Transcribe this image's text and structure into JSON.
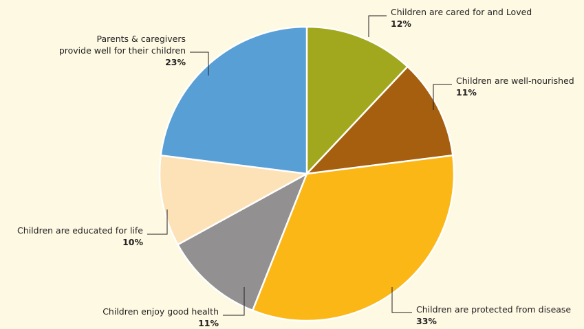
{
  "chart_data": {
    "type": "pie",
    "slices": [
      {
        "label": [
          "Children are cared for and Loved"
        ],
        "value": 12,
        "display": "12%",
        "color": "#a2a81d"
      },
      {
        "label": [
          "Children are well-nourished"
        ],
        "value": 11,
        "display": "11%",
        "color": "#a65f0e"
      },
      {
        "label": [
          "Children are protected from disease"
        ],
        "value": 33,
        "display": "33%",
        "color": "#fbb716"
      },
      {
        "label": [
          "Children enjoy good health"
        ],
        "value": 11,
        "display": "11%",
        "color": "#929091"
      },
      {
        "label": [
          "Children are educated for life"
        ],
        "value": 10,
        "display": "10%",
        "color": "#fde2b7"
      },
      {
        "label": [
          "Parents & caregivers",
          "provide well for their children"
        ],
        "value": 23,
        "display": "23%",
        "color": "#589fd5"
      }
    ]
  }
}
